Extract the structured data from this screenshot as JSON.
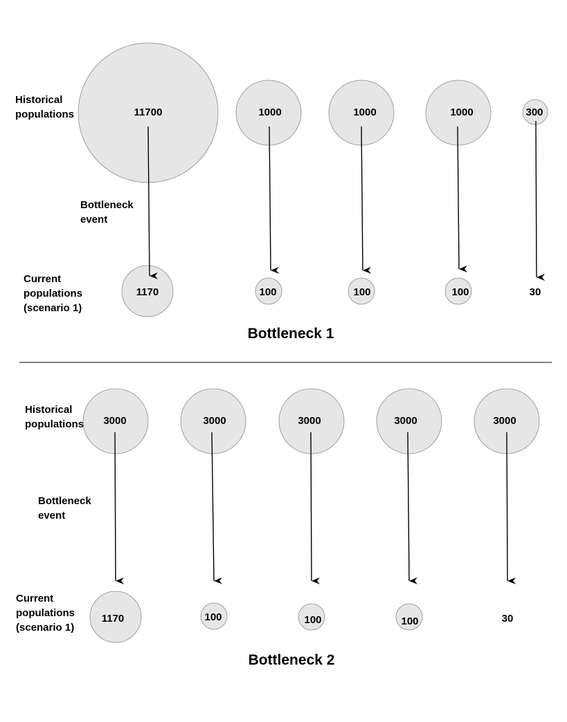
{
  "colors": {
    "circle_fill": "#e6e6e6",
    "circle_stroke": "#8c8c8c",
    "arrow": "#000000",
    "divider": "#000000"
  },
  "panels": [
    {
      "title": "Bottleneck 1",
      "labels": {
        "historical": [
          "Historical",
          "populations"
        ],
        "event": [
          "Bottleneck",
          "event"
        ],
        "current": [
          "Current",
          "populations",
          "(scenario 1)"
        ]
      },
      "populations": [
        {
          "historical": "11700",
          "current": "1170"
        },
        {
          "historical": "1000",
          "current": "100"
        },
        {
          "historical": "1000",
          "current": "100"
        },
        {
          "historical": "1000",
          "current": "100"
        },
        {
          "historical": "300",
          "current": "30"
        }
      ]
    },
    {
      "title": "Bottleneck 2",
      "labels": {
        "historical": [
          "Historical",
          "populations"
        ],
        "event": [
          "Bottleneck",
          "event"
        ],
        "current": [
          "Current",
          "populations",
          "(scenario 1)"
        ]
      },
      "populations": [
        {
          "historical": "3000",
          "current": "1170"
        },
        {
          "historical": "3000",
          "current": "100"
        },
        {
          "historical": "3000",
          "current": "100"
        },
        {
          "historical": "3000",
          "current": "100"
        },
        {
          "historical": "3000",
          "current": "30"
        }
      ]
    }
  ]
}
